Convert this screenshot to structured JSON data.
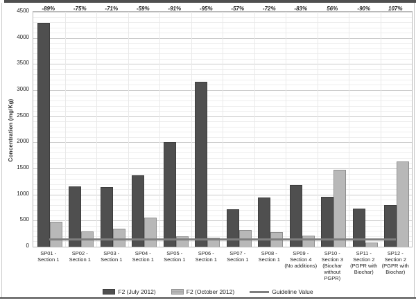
{
  "figure": {
    "y_axis_title": "Concentration (mg/Kg)"
  },
  "chart_data": {
    "type": "bar",
    "title": "",
    "xlabel": "",
    "ylabel": "Concentration (mg/Kg)",
    "ylim": [
      0,
      4500
    ],
    "y_tick_step": 500,
    "y_minor_gridline_step": 100,
    "grid": true,
    "legend_position": "bottom",
    "categories": [
      "SP01 - Section 1",
      "SP02 - Section 1",
      "SP03 - Section 1",
      "SP04 - Section 1",
      "SP05 - Section 1",
      "SP06 - Section 1",
      "SP07 - Section 1",
      "SP08 - Section 1",
      "SP09 - Section 4 (No additions)",
      "SP10 - Section 3 (Biochar without PGPR)",
      "SP11 - Section 2 (PGPR with Biochar)",
      "SP12 - Section 2 (PGPR with Biochar)"
    ],
    "category_lines": [
      [
        "SP01 -",
        "Section 1"
      ],
      [
        "SP02 -",
        "Section 1"
      ],
      [
        "SP03 -",
        "Section 1"
      ],
      [
        "SP04 -",
        "Section 1"
      ],
      [
        "SP05 -",
        "Section 1"
      ],
      [
        "SP06 -",
        "Section 1"
      ],
      [
        "SP07 -",
        "Section 1"
      ],
      [
        "SP08 -",
        "Section 1"
      ],
      [
        "SP09 -",
        "Section 4",
        "(No additions)"
      ],
      [
        "SP10 -",
        "Section 3",
        "(Biochar",
        "without",
        "PGPR)"
      ],
      [
        "SP11 -",
        "Section 2",
        "(PGPR with",
        "Biochar)"
      ],
      [
        "SP12 -",
        "Section 2",
        "(PGPR with",
        "Biochar)"
      ]
    ],
    "series": [
      {
        "name": "F2 (July 2012)",
        "color": "#4f4f4f",
        "values": [
          4270,
          1140,
          1130,
          1350,
          1990,
          3140,
          700,
          930,
          1170,
          940,
          720,
          780
        ]
      },
      {
        "name": "F2 (October 2012)",
        "color": "#b8b8b8",
        "values": [
          470,
          285,
          330,
          550,
          180,
          160,
          300,
          260,
          195,
          1460,
          70,
          1620
        ]
      }
    ],
    "percent_change_labels": [
      "-89%",
      "-75%",
      "-71%",
      "-59%",
      "-91%",
      "-95%",
      "-57%",
      "-72%",
      "-83%",
      "56%",
      "-90%",
      "107%"
    ],
    "guideline": {
      "label": "Guideline Value",
      "value": 150,
      "color": "#7f7f7f"
    },
    "legend_labels": [
      "F2 (July 2012)",
      "F2 (October 2012)",
      "Guideline Value"
    ]
  }
}
